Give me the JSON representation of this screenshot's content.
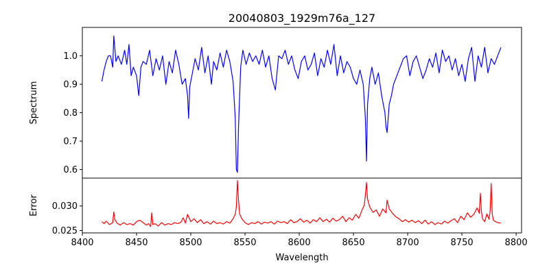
{
  "chart_data": {
    "type": "line",
    "title": "20040803_1929m76a_127",
    "xlabel": "Wavelength",
    "x_ticks": [
      8400,
      8450,
      8500,
      8550,
      8600,
      8650,
      8700,
      8750,
      8800
    ],
    "xlim": [
      8400,
      8805
    ],
    "grid": false,
    "panels": [
      {
        "ylabel": "Spectrum",
        "ylim": [
          0.57,
          1.1
        ],
        "y_ticks": [
          0.6,
          0.7,
          0.8,
          0.9,
          1.0
        ],
        "y_tick_labels": [
          "0.6",
          "0.7",
          "0.8",
          "0.9",
          "1.0"
        ],
        "series": [
          {
            "color": "#0000ff",
            "x": [
              8418,
              8420,
              8422,
              8424,
              8426,
              8428,
              8429,
              8431,
              8433,
              8436,
              8439,
              8441,
              8443,
              8445,
              8447,
              8450,
              8452,
              8454,
              8456,
              8459,
              8462,
              8465,
              8468,
              8471,
              8474,
              8477,
              8480,
              8483,
              8486,
              8489,
              8492,
              8495,
              8497,
              8498,
              8499,
              8501,
              8504,
              8507,
              8510,
              8513,
              8516,
              8519,
              8521,
              8524,
              8527,
              8530,
              8533,
              8536,
              8539,
              8541,
              8542,
              8543,
              8544,
              8546,
              8548,
              8551,
              8554,
              8557,
              8560,
              8563,
              8566,
              8569,
              8572,
              8575,
              8578,
              8581,
              8584,
              8587,
              8590,
              8593,
              8596,
              8599,
              8602,
              8605,
              8608,
              8611,
              8614,
              8617,
              8620,
              8623,
              8626,
              8629,
              8632,
              8635,
              8638,
              8641,
              8644,
              8647,
              8650,
              8653,
              8656,
              8659,
              8661,
              8662,
              8663,
              8665,
              8667,
              8670,
              8673,
              8676,
              8679,
              8680,
              8681,
              8683,
              8685,
              8687,
              8690,
              8693,
              8696,
              8699,
              8702,
              8705,
              8708,
              8711,
              8714,
              8717,
              8720,
              8723,
              8726,
              8729,
              8732,
              8735,
              8738,
              8741,
              8744,
              8747,
              8750,
              8753,
              8756,
              8759,
              8762,
              8765,
              8768,
              8771,
              8774,
              8777,
              8780,
              8783,
              8786
            ],
            "y": [
              0.91,
              0.95,
              0.98,
              1.0,
              1.0,
              0.96,
              1.07,
              0.98,
              1.0,
              0.97,
              1.02,
              0.97,
              1.04,
              0.93,
              0.96,
              0.93,
              0.86,
              0.96,
              0.98,
              0.97,
              1.02,
              0.93,
              0.99,
              0.95,
              1.0,
              0.9,
              0.98,
              0.94,
              1.02,
              0.97,
              0.9,
              0.92,
              0.86,
              0.78,
              0.89,
              0.93,
              0.99,
              0.95,
              1.03,
              0.94,
              1.0,
              0.9,
              0.98,
              0.95,
              1.01,
              0.96,
              1.02,
              0.98,
              0.91,
              0.78,
              0.6,
              0.59,
              0.75,
              0.96,
              1.02,
              0.97,
              1.01,
              0.98,
              1.0,
              0.97,
              1.02,
              0.96,
              1.0,
              0.92,
              0.88,
              1.0,
              0.99,
              1.02,
              0.97,
              1.0,
              0.95,
              0.92,
              0.98,
              1.0,
              0.95,
              0.97,
              1.01,
              0.93,
              0.99,
              0.96,
              1.02,
              0.97,
              1.04,
              0.93,
              1.0,
              0.94,
              0.98,
              0.96,
              0.92,
              0.9,
              0.95,
              0.9,
              0.78,
              0.63,
              0.83,
              0.92,
              0.96,
              0.9,
              0.94,
              0.86,
              0.8,
              0.75,
              0.73,
              0.83,
              0.86,
              0.9,
              0.93,
              0.96,
              0.99,
              1.0,
              0.93,
              0.98,
              1.0,
              0.96,
              0.92,
              0.95,
              0.99,
              0.96,
              1.01,
              0.94,
              1.02,
              0.98,
              1.0,
              0.95,
              0.99,
              0.93,
              0.97,
              0.91,
              0.99,
              1.03,
              0.91,
              1.0,
              0.96,
              1.03,
              0.94,
              0.99,
              0.97,
              1.0,
              1.03
            ]
          }
        ]
      },
      {
        "ylabel": "Error",
        "ylim": [
          0.0245,
          0.0357
        ],
        "y_ticks": [
          0.025,
          0.03
        ],
        "y_tick_labels": [
          "0.025",
          "0.030"
        ],
        "series": [
          {
            "color": "#ff0000",
            "x": [
              8418,
              8420,
              8422,
              8425,
              8428,
              8429,
              8430,
              8432,
              8435,
              8438,
              8441,
              8444,
              8447,
              8450,
              8453,
              8456,
              8459,
              8461,
              8463,
              8464,
              8465,
              8467,
              8470,
              8473,
              8476,
              8479,
              8482,
              8485,
              8488,
              8491,
              8493,
              8495,
              8497,
              8500,
              8503,
              8506,
              8509,
              8512,
              8515,
              8518,
              8521,
              8524,
              8527,
              8530,
              8533,
              8536,
              8539,
              8541,
              8542,
              8543,
              8544,
              8545,
              8547,
              8550,
              8553,
              8556,
              8559,
              8562,
              8565,
              8568,
              8571,
              8574,
              8577,
              8580,
              8583,
              8586,
              8589,
              8592,
              8595,
              8598,
              8601,
              8604,
              8607,
              8610,
              8613,
              8616,
              8619,
              8622,
              8625,
              8628,
              8631,
              8634,
              8637,
              8640,
              8643,
              8646,
              8649,
              8652,
              8655,
              8658,
              8660,
              8661,
              8662,
              8663,
              8665,
              8668,
              8671,
              8674,
              8677,
              8680,
              8681,
              8683,
              8686,
              8689,
              8692,
              8695,
              8698,
              8701,
              8704,
              8707,
              8710,
              8713,
              8716,
              8719,
              8722,
              8725,
              8728,
              8731,
              8734,
              8737,
              8740,
              8743,
              8746,
              8749,
              8752,
              8755,
              8758,
              8761,
              8764,
              8766,
              8767,
              8768,
              8769,
              8771,
              8773,
              8775,
              8776,
              8777,
              8778,
              8779,
              8781,
              8783,
              8786
            ],
            "y": [
              0.0268,
              0.0264,
              0.0269,
              0.0262,
              0.0266,
              0.0288,
              0.0272,
              0.0265,
              0.0261,
              0.0266,
              0.0262,
              0.0264,
              0.0261,
              0.0268,
              0.0271,
              0.0266,
              0.0261,
              0.0264,
              0.0258,
              0.0286,
              0.0262,
              0.0264,
              0.0259,
              0.0266,
              0.0261,
              0.0264,
              0.0262,
              0.0266,
              0.0264,
              0.0267,
              0.0276,
              0.0265,
              0.0283,
              0.0268,
              0.0274,
              0.0266,
              0.0272,
              0.0264,
              0.0268,
              0.0263,
              0.0269,
              0.0264,
              0.0266,
              0.0263,
              0.0268,
              0.0265,
              0.0274,
              0.0283,
              0.0298,
              0.0352,
              0.0312,
              0.0284,
              0.0274,
              0.0266,
              0.0262,
              0.0266,
              0.0264,
              0.0268,
              0.0263,
              0.0267,
              0.0265,
              0.0268,
              0.0263,
              0.0269,
              0.0266,
              0.0268,
              0.0264,
              0.0272,
              0.0266,
              0.0268,
              0.0274,
              0.0267,
              0.0271,
              0.0265,
              0.0272,
              0.0268,
              0.0276,
              0.0268,
              0.0273,
              0.0267,
              0.0275,
              0.0269,
              0.0272,
              0.0279,
              0.0268,
              0.0276,
              0.0271,
              0.0283,
              0.0275,
              0.0292,
              0.0302,
              0.0322,
              0.0348,
              0.0314,
              0.0298,
              0.0287,
              0.0292,
              0.0279,
              0.0294,
              0.0286,
              0.0312,
              0.0294,
              0.0285,
              0.0278,
              0.0274,
              0.0268,
              0.0272,
              0.0267,
              0.0271,
              0.0266,
              0.027,
              0.0264,
              0.0271,
              0.0263,
              0.0268,
              0.0262,
              0.0266,
              0.0263,
              0.0269,
              0.0265,
              0.027,
              0.0274,
              0.0266,
              0.0279,
              0.0272,
              0.0286,
              0.0277,
              0.0283,
              0.0296,
              0.0285,
              0.0326,
              0.0289,
              0.0274,
              0.0268,
              0.0284,
              0.0273,
              0.0289,
              0.0346,
              0.0283,
              0.0271,
              0.0268,
              0.0266,
              0.0265
            ]
          }
        ]
      }
    ]
  }
}
